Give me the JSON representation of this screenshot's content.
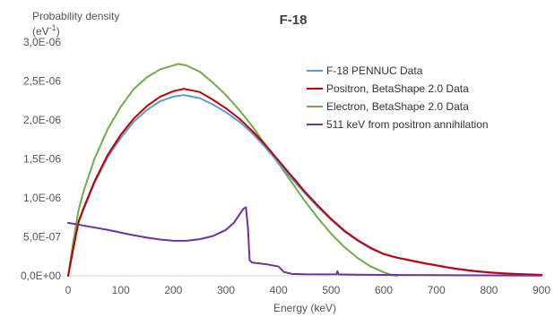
{
  "chart_data": {
    "type": "line",
    "title": "F-18",
    "xlabel": "Energy (keV)",
    "ylabel_line1": "Probability density",
    "ylabel_line2_prefix": "(eV",
    "ylabel_line2_sup": "-1",
    "ylabel_line2_suffix": ")",
    "xlim": [
      0,
      900
    ],
    "ylim": [
      0,
      3e-06
    ],
    "x_ticks": [
      0,
      100,
      200,
      300,
      400,
      500,
      600,
      700,
      800,
      900
    ],
    "x_tick_labels": [
      "0",
      "100",
      "200",
      "300",
      "400",
      "500",
      "600",
      "700",
      "800",
      "900"
    ],
    "y_ticks": [
      0,
      5e-07,
      1e-06,
      1.5e-06,
      2e-06,
      2.5e-06,
      3e-06
    ],
    "y_tick_labels": [
      "0,0E+00",
      "5,0E-07",
      "1,0E-06",
      "1,5E-06",
      "2,0E-06",
      "2,5E-06",
      "3,0E-06"
    ],
    "grid": false,
    "legend_position": "right",
    "series": [
      {
        "name": "F-18 PENNUC Data",
        "color": "#5b9bd5",
        "points": [
          [
            0,
            0
          ],
          [
            10,
            3.5e-07
          ],
          [
            20,
            6.9e-07
          ],
          [
            30,
            8.6e-07
          ],
          [
            50,
            1.19e-06
          ],
          [
            75,
            1.52e-06
          ],
          [
            100,
            1.77e-06
          ],
          [
            125,
            1.98e-06
          ],
          [
            150,
            2.13e-06
          ],
          [
            175,
            2.24e-06
          ],
          [
            200,
            2.3e-06
          ],
          [
            220,
            2.32e-06
          ],
          [
            250,
            2.28e-06
          ],
          [
            275,
            2.2e-06
          ],
          [
            300,
            2.1e-06
          ],
          [
            325,
            1.98e-06
          ],
          [
            350,
            1.83e-06
          ],
          [
            375,
            1.65e-06
          ],
          [
            400,
            1.45e-06
          ],
          [
            425,
            1.25e-06
          ],
          [
            450,
            1.06e-06
          ],
          [
            475,
            8.8e-07
          ],
          [
            500,
            7.2e-07
          ],
          [
            525,
            5.7e-07
          ],
          [
            550,
            4.5e-07
          ],
          [
            575,
            3.5e-07
          ],
          [
            600,
            2.75e-07
          ],
          [
            625,
            2.3e-07
          ],
          [
            650,
            1.95e-07
          ],
          [
            675,
            1.6e-07
          ],
          [
            700,
            1.3e-07
          ],
          [
            725,
            1e-07
          ],
          [
            750,
            7.5e-08
          ],
          [
            775,
            5.5e-08
          ],
          [
            800,
            4e-08
          ],
          [
            825,
            3e-08
          ],
          [
            850,
            2.2e-08
          ],
          [
            875,
            1.6e-08
          ],
          [
            900,
            1.2e-08
          ]
        ]
      },
      {
        "name": "Positron, BetaShape 2.0 Data",
        "color": "#c00000",
        "points": [
          [
            0,
            0
          ],
          [
            10,
            3.6e-07
          ],
          [
            20,
            7e-07
          ],
          [
            30,
            8.8e-07
          ],
          [
            50,
            1.21e-06
          ],
          [
            75,
            1.55e-06
          ],
          [
            100,
            1.81e-06
          ],
          [
            125,
            2.02e-06
          ],
          [
            150,
            2.18e-06
          ],
          [
            175,
            2.3e-06
          ],
          [
            200,
            2.37e-06
          ],
          [
            220,
            2.4e-06
          ],
          [
            250,
            2.36e-06
          ],
          [
            275,
            2.26e-06
          ],
          [
            300,
            2.15e-06
          ],
          [
            325,
            2.02e-06
          ],
          [
            350,
            1.86e-06
          ],
          [
            375,
            1.68e-06
          ],
          [
            400,
            1.48e-06
          ],
          [
            425,
            1.28e-06
          ],
          [
            450,
            1.08e-06
          ],
          [
            475,
            9e-07
          ],
          [
            500,
            7.3e-07
          ],
          [
            525,
            5.8e-07
          ],
          [
            550,
            4.6e-07
          ],
          [
            575,
            3.6e-07
          ],
          [
            600,
            2.8e-07
          ],
          [
            625,
            2.35e-07
          ],
          [
            650,
            2e-07
          ],
          [
            675,
            1.65e-07
          ],
          [
            700,
            1.35e-07
          ],
          [
            725,
            1.05e-07
          ],
          [
            750,
            8e-08
          ],
          [
            775,
            6e-08
          ],
          [
            800,
            4.5e-08
          ],
          [
            825,
            3.3e-08
          ],
          [
            850,
            2.5e-08
          ],
          [
            875,
            1.8e-08
          ],
          [
            900,
            1.3e-08
          ]
        ]
      },
      {
        "name": "Electron, BetaShape 2.0 Data",
        "color": "#70ad47",
        "points": [
          [
            0,
            0
          ],
          [
            10,
            4.5e-07
          ],
          [
            20,
            8.5e-07
          ],
          [
            30,
            1.1e-06
          ],
          [
            50,
            1.5e-06
          ],
          [
            75,
            1.88e-06
          ],
          [
            100,
            2.17e-06
          ],
          [
            125,
            2.4e-06
          ],
          [
            150,
            2.55e-06
          ],
          [
            175,
            2.65e-06
          ],
          [
            200,
            2.7e-06
          ],
          [
            210,
            2.72e-06
          ],
          [
            225,
            2.7e-06
          ],
          [
            250,
            2.62e-06
          ],
          [
            275,
            2.48e-06
          ],
          [
            300,
            2.32e-06
          ],
          [
            325,
            2.13e-06
          ],
          [
            350,
            1.92e-06
          ],
          [
            375,
            1.68e-06
          ],
          [
            400,
            1.44e-06
          ],
          [
            425,
            1.2e-06
          ],
          [
            450,
            9.6e-07
          ],
          [
            475,
            7.4e-07
          ],
          [
            500,
            5.4e-07
          ],
          [
            525,
            3.7e-07
          ],
          [
            550,
            2.3e-07
          ],
          [
            575,
            1.2e-07
          ],
          [
            600,
            4.5e-08
          ],
          [
            615,
            1e-08
          ],
          [
            625,
            0
          ]
        ]
      },
      {
        "name": "511 keV from positron annihilation",
        "color": "#7030a0",
        "points": [
          [
            0,
            6.8e-07
          ],
          [
            25,
            6.5e-07
          ],
          [
            50,
            6.2e-07
          ],
          [
            75,
            5.9e-07
          ],
          [
            100,
            5.55e-07
          ],
          [
            125,
            5.2e-07
          ],
          [
            150,
            4.9e-07
          ],
          [
            175,
            4.65e-07
          ],
          [
            200,
            4.5e-07
          ],
          [
            225,
            4.5e-07
          ],
          [
            250,
            4.7e-07
          ],
          [
            275,
            5.1e-07
          ],
          [
            300,
            5.9e-07
          ],
          [
            315,
            6.8e-07
          ],
          [
            325,
            7.8e-07
          ],
          [
            333,
            8.6e-07
          ],
          [
            338,
            8.8e-07
          ],
          [
            342,
            6e-07
          ],
          [
            345,
            2e-07
          ],
          [
            350,
            1.7e-07
          ],
          [
            375,
            1.5e-07
          ],
          [
            400,
            1.2e-07
          ],
          [
            410,
            5e-08
          ],
          [
            425,
            2.5e-08
          ],
          [
            450,
            2e-08
          ],
          [
            500,
            1.8e-08
          ],
          [
            510,
            2e-08
          ],
          [
            512,
            6e-08
          ],
          [
            514,
            1.8e-08
          ],
          [
            550,
            1.5e-08
          ],
          [
            600,
            1.2e-08
          ],
          [
            700,
            8e-09
          ],
          [
            800,
            5e-09
          ],
          [
            900,
            3e-09
          ]
        ]
      }
    ]
  }
}
